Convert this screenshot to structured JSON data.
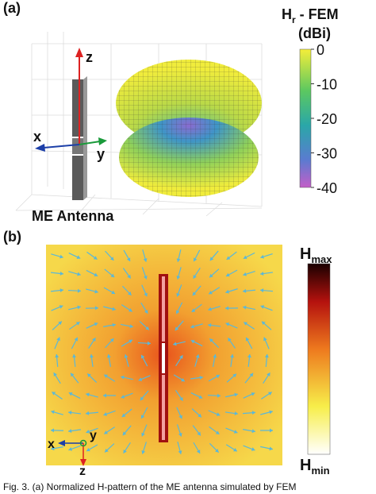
{
  "panel_a": {
    "label": "(a)",
    "colorbar_title": {
      "base": "H",
      "sub": "r",
      "rest": " - FEM"
    },
    "colorbar_unit": "(dBi)",
    "colorbar_ticks": [
      0,
      -10,
      -20,
      -30,
      -40
    ],
    "axes": {
      "z": "z",
      "x": "x",
      "y": "y"
    },
    "caption": "ME Antenna"
  },
  "panel_b": {
    "label": "(b)",
    "colorbar_max": {
      "base": "H",
      "sub": "max"
    },
    "colorbar_min": {
      "base": "H",
      "sub": "min"
    },
    "axes": {
      "x": "x",
      "y": "y",
      "z": "z"
    }
  },
  "figure_caption": "Fig. 3.   (a) Normalized H-pattern of the ME antenna simulated by FEM"
}
